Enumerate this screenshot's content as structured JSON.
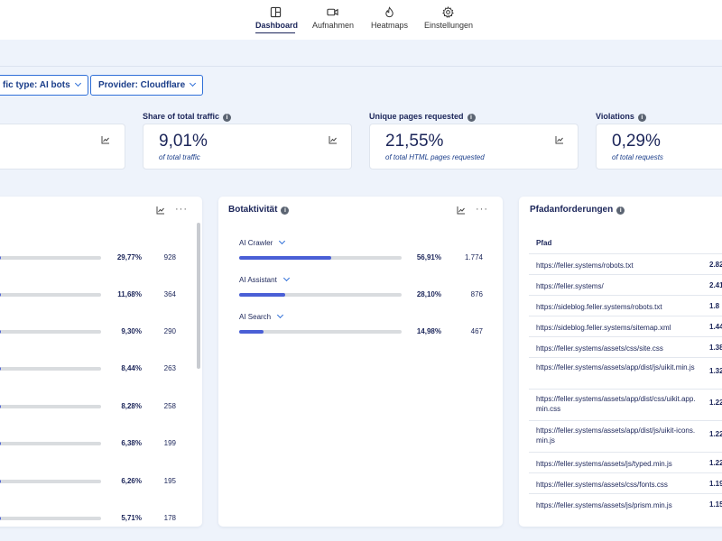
{
  "nav": {
    "items": [
      {
        "label": "Dashboard",
        "icon": "dashboard-icon"
      },
      {
        "label": "Aufnahmen",
        "icon": "video-icon"
      },
      {
        "label": "Heatmaps",
        "icon": "flame-icon"
      },
      {
        "label": "Einstellungen",
        "icon": "gear-icon"
      }
    ],
    "active": "Dashboard"
  },
  "filters": {
    "traffic_type": "fic type: AI bots",
    "provider": "Provider: Cloudflare"
  },
  "kpis": [
    {
      "title": "Share of total traffic",
      "value": "9,01%",
      "sub": "of total traffic"
    },
    {
      "title": "Unique pages requested",
      "value": "21,55%",
      "sub": "of total HTML pages requested"
    },
    {
      "title": "Violations",
      "value": "0,29%",
      "sub": "of total requests"
    }
  ],
  "left_panel": {
    "rows": [
      {
        "pct_text": "29,77%",
        "count": "928",
        "pct": 0.2977
      },
      {
        "pct_text": "11,68%",
        "count": "364",
        "pct": 0.1168
      },
      {
        "pct_text": "9,30%",
        "count": "290",
        "pct": 0.093
      },
      {
        "pct_text": "8,44%",
        "count": "263",
        "pct": 0.0844
      },
      {
        "pct_text": "8,28%",
        "count": "258",
        "pct": 0.0828
      },
      {
        "pct_text": "6,38%",
        "count": "199",
        "pct": 0.0638
      },
      {
        "pct_text": "6,26%",
        "count": "195",
        "pct": 0.0626
      },
      {
        "pct_text": "5,71%",
        "count": "178",
        "pct": 0.0571
      }
    ]
  },
  "bot_activity": {
    "title": "Botaktivität",
    "rows": [
      {
        "label": "AI Crawler",
        "pct_text": "56,91%",
        "count": "1.774",
        "pct": 0.5691
      },
      {
        "label": "AI Assistant",
        "pct_text": "28,10%",
        "count": "876",
        "pct": 0.281
      },
      {
        "label": "AI Search",
        "pct_text": "14,98%",
        "count": "467",
        "pct": 0.1498
      }
    ]
  },
  "paths": {
    "title": "Pfadanforderungen",
    "column": "Pfad",
    "rows": [
      {
        "path": "https://feller.systems/robots.txt",
        "count": "2.82"
      },
      {
        "path": "https://feller.systems/",
        "count": "2.41"
      },
      {
        "path": "https://sideblog.feller.systems/robots.txt",
        "count": "1.8"
      },
      {
        "path": "https://sideblog.feller.systems/sitemap.xml",
        "count": "1.44"
      },
      {
        "path": "https://feller.systems/assets/css/site.css",
        "count": "1.38"
      },
      {
        "path": "https://feller.systems/assets/app/dist/js/uikit.min.js",
        "count": "1.32"
      },
      {
        "path": "https://feller.systems/assets/app/dist/css/uikit.app.min.css",
        "count": "1.22"
      },
      {
        "path": "https://feller.systems/assets/app/dist/js/uikit-icons.min.js",
        "count": "1.22"
      },
      {
        "path": "https://feller.systems/assets/js/typed.min.js",
        "count": "1.22"
      },
      {
        "path": "https://feller.systems/assets/css/fonts.css",
        "count": "1.19"
      },
      {
        "path": "https://feller.systems/assets/js/prism.min.js",
        "count": "1.15"
      }
    ]
  },
  "colors": {
    "accent": "#2f6fd8",
    "bar": "#4a5fd6",
    "track": "#d9dcdf",
    "text": "#1b2559"
  }
}
